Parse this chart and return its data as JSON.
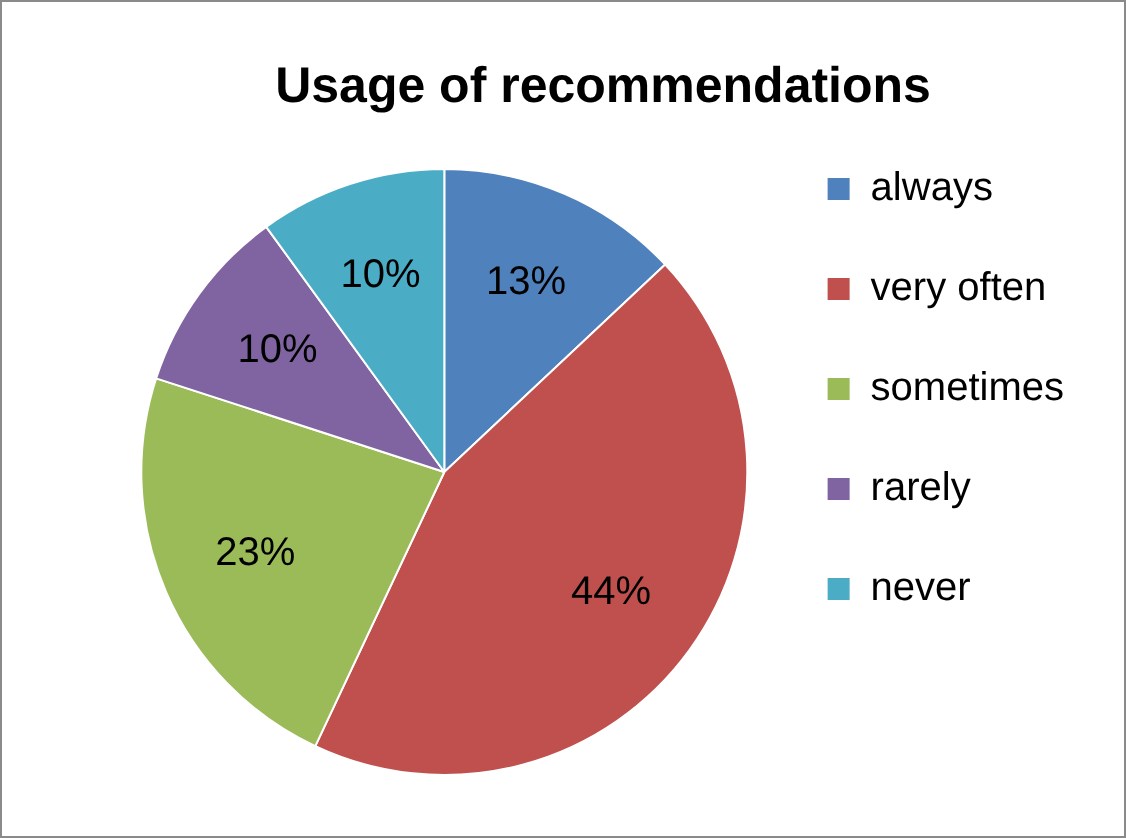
{
  "chart_data": {
    "type": "pie",
    "title": "Usage of recommendations",
    "categories": [
      "always",
      "very often",
      "sometimes",
      "rarely",
      "never"
    ],
    "values": [
      13,
      44,
      23,
      10,
      10
    ],
    "colors": [
      "#4f81bd",
      "#c0504d",
      "#9bbb59",
      "#8064a2",
      "#4bacc6"
    ],
    "value_labels": [
      "13%",
      "44%",
      "23%",
      "10%",
      "10%"
    ],
    "legend": "right"
  }
}
